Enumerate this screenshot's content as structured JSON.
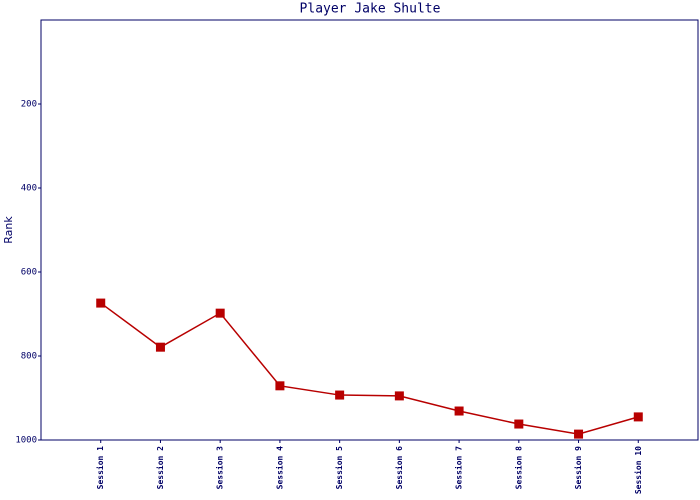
{
  "chart_data": {
    "type": "line",
    "title": "Player Jake Shulte",
    "y_label": "Rank",
    "categories": [
      "Session 1",
      "Session 2",
      "Session 3",
      "Session 4",
      "Session 5",
      "Session 6",
      "Session 7",
      "Session 8",
      "Session 9",
      "Session 10"
    ],
    "series": [
      {
        "name": "Rank",
        "color": "#b80000",
        "values": [
          674,
          779,
          698,
          871,
          893,
          895,
          931,
          962,
          986,
          945
        ]
      }
    ],
    "ylim": [
      1000,
      0
    ],
    "yticks": [
      200,
      400,
      600,
      800,
      1000
    ],
    "grid": false
  }
}
